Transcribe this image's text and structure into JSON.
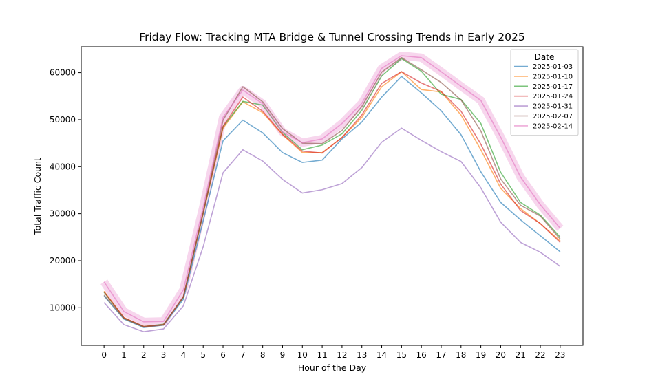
{
  "chart_data": {
    "type": "line",
    "title": "Friday Flow: Tracking MTA Bridge & Tunnel Crossing Trends in Early 2025",
    "xlabel": "Hour of the Day",
    "ylabel": "Total Traffic Count",
    "x": [
      0,
      1,
      2,
      3,
      4,
      5,
      6,
      7,
      8,
      9,
      10,
      11,
      12,
      13,
      14,
      15,
      16,
      17,
      18,
      19,
      20,
      21,
      22,
      23
    ],
    "xlim": [
      -1.15,
      24.15
    ],
    "ylim": [
      2000,
      65500
    ],
    "yticks": [
      10000,
      20000,
      30000,
      40000,
      50000,
      60000
    ],
    "grid": false,
    "legend": {
      "title": "Date",
      "placement": "top-right"
    },
    "series": [
      {
        "name": "2025-01-03",
        "color": "#1f77b4",
        "highlight": false,
        "values": [
          12500,
          7600,
          5800,
          6300,
          11800,
          28500,
          45500,
          49900,
          47200,
          43000,
          40900,
          41400,
          45900,
          49500,
          54800,
          59200,
          55700,
          51900,
          46800,
          38900,
          32400,
          28700,
          25300,
          21900
        ]
      },
      {
        "name": "2025-01-10",
        "color": "#ff7f0e",
        "highlight": false,
        "values": [
          13500,
          7900,
          6000,
          6400,
          12300,
          30000,
          48200,
          53800,
          51500,
          46800,
          43000,
          43000,
          46200,
          50500,
          57000,
          60200,
          56400,
          55900,
          51000,
          43600,
          35400,
          31100,
          27900,
          24200
        ]
      },
      {
        "name": "2025-01-17",
        "color": "#2ca02c",
        "highlight": false,
        "values": [
          13300,
          7800,
          6000,
          6500,
          12200,
          30100,
          48500,
          53900,
          53100,
          47300,
          43600,
          44600,
          47000,
          52000,
          59300,
          63000,
          60300,
          55400,
          54300,
          49200,
          38800,
          32400,
          29700,
          25000
        ]
      },
      {
        "name": "2025-01-24",
        "color": "#d62728",
        "highlight": false,
        "values": [
          13400,
          7900,
          6000,
          6400,
          12300,
          30300,
          48600,
          54800,
          51800,
          46900,
          43300,
          42900,
          46200,
          51000,
          57700,
          60200,
          57800,
          56000,
          51800,
          44800,
          36300,
          30700,
          27900,
          23900
        ]
      },
      {
        "name": "2025-01-31",
        "color": "#9467bd",
        "highlight": false,
        "values": [
          11100,
          6400,
          4900,
          5500,
          10400,
          23000,
          38700,
          43600,
          41200,
          37300,
          34400,
          35100,
          36400,
          39800,
          45200,
          48200,
          45600,
          43200,
          41100,
          35500,
          28200,
          23900,
          21800,
          18800
        ]
      },
      {
        "name": "2025-02-07",
        "color": "#8c564b",
        "highlight": false,
        "values": [
          12700,
          7700,
          5900,
          6300,
          12400,
          30400,
          49900,
          57000,
          53800,
          48100,
          45000,
          44900,
          47700,
          52800,
          60100,
          63200,
          60600,
          57900,
          54200,
          47600,
          37400,
          31800,
          29500,
          24600
        ]
      },
      {
        "name": "2025-02-14",
        "color": "#e377c2",
        "highlight": true,
        "values": [
          15500,
          9200,
          7000,
          7100,
          13800,
          31400,
          50500,
          56300,
          53400,
          47400,
          45100,
          45900,
          49200,
          53500,
          60900,
          63600,
          63200,
          60200,
          57100,
          54100,
          46300,
          37800,
          31900,
          26900
        ]
      }
    ]
  }
}
